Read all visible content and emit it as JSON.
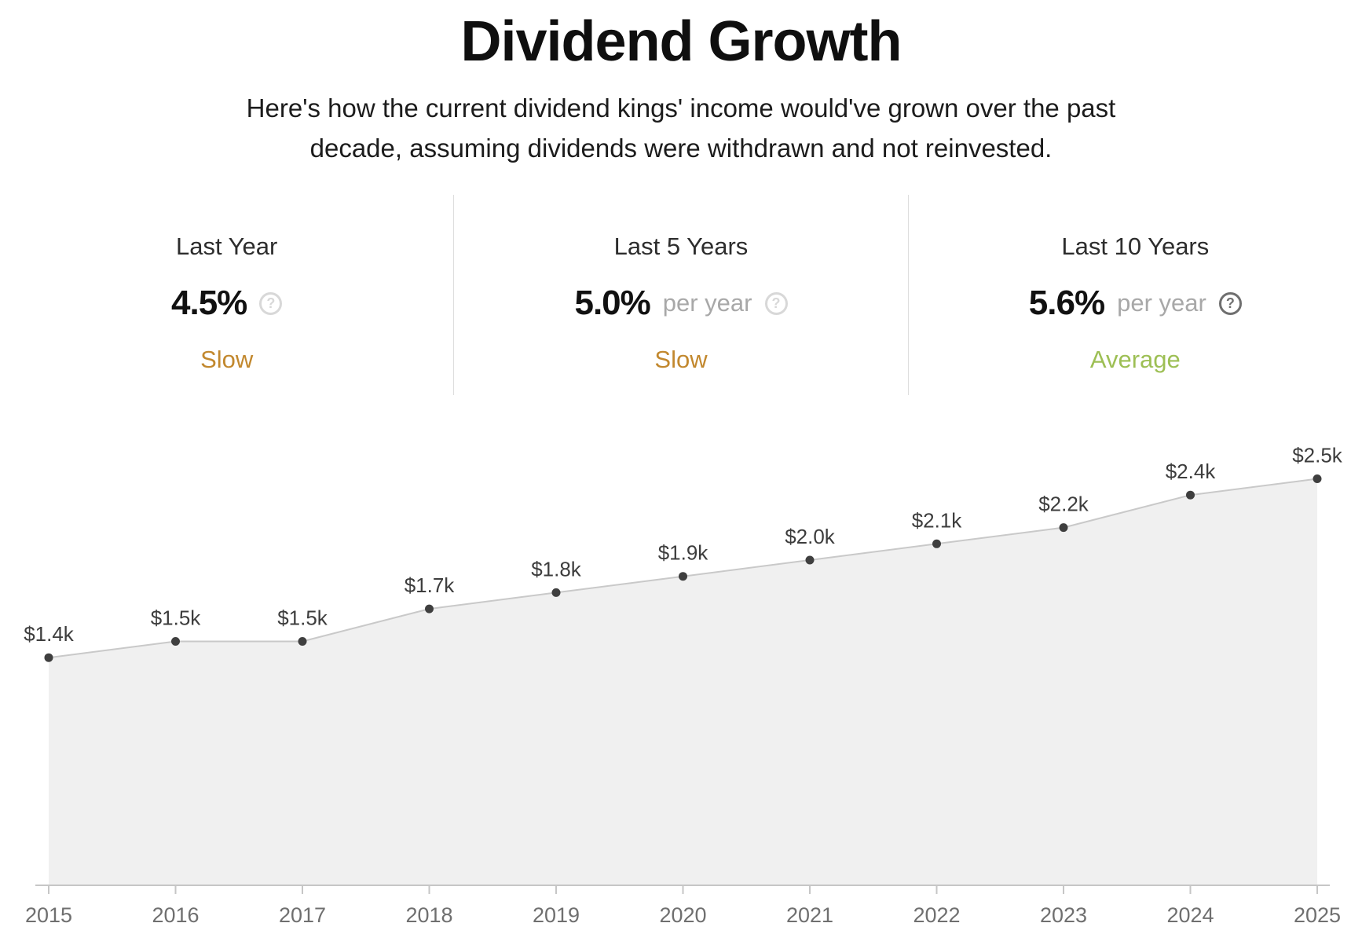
{
  "header": {
    "title": "Dividend Growth",
    "subtitle_line1": "Here's how the current dividend kings' income would've grown over the past",
    "subtitle_line2": "decade, assuming dividends were withdrawn and not reinvested."
  },
  "stats": {
    "panels": [
      {
        "label": "Last Year",
        "value": "4.5%",
        "unit": "",
        "status": "Slow",
        "status_color": "#c2882e",
        "help_icon": "question-mark-icon",
        "help_icon_glyph": "?",
        "icon_color": "#d8d8d8"
      },
      {
        "label": "Last 5 Years",
        "value": "5.0%",
        "unit": "per year",
        "status": "Slow",
        "status_color": "#c2882e",
        "help_icon": "question-mark-icon",
        "help_icon_glyph": "?",
        "icon_color": "#d8d8d8"
      },
      {
        "label": "Last 10 Years",
        "value": "5.6%",
        "unit": "per year",
        "status": "Average",
        "status_color": "#9dbf54",
        "help_icon": "question-mark-icon",
        "help_icon_glyph": "?",
        "icon_color": "#6f6f6f"
      }
    ]
  },
  "chart_data": {
    "type": "area",
    "title": "",
    "xlabel": "",
    "ylabel": "",
    "categories": [
      "2015",
      "2016",
      "2017",
      "2018",
      "2019",
      "2020",
      "2021",
      "2022",
      "2023",
      "2024",
      "2025"
    ],
    "values": [
      1400,
      1500,
      1500,
      1700,
      1800,
      1900,
      2000,
      2100,
      2200,
      2400,
      2500
    ],
    "point_labels": [
      "$1.4k",
      "$1.5k",
      "$1.5k",
      "$1.7k",
      "$1.8k",
      "$1.9k",
      "$2.0k",
      "$2.1k",
      "$2.2k",
      "$2.4k",
      "$2.5k"
    ],
    "ylim": [
      0,
      2900
    ],
    "grid": false,
    "legend": false,
    "colors": {
      "area_fill": "#f0f0f0",
      "line": "#c9c9c9",
      "dot": "#3f3f3f",
      "axis": "#c6c6c6",
      "tick": "#c6c6c6",
      "year_label": "#6f6f6f",
      "point_label": "#3d3d3d"
    }
  }
}
